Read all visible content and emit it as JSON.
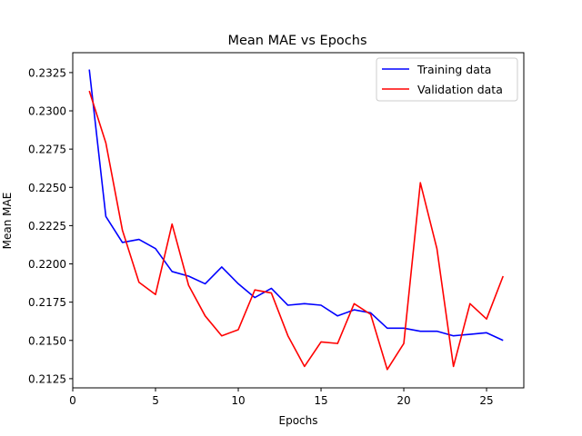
{
  "chart_data": {
    "type": "line",
    "title": "Mean MAE vs Epochs",
    "xlabel": "Epochs",
    "ylabel": "Mean MAE",
    "xlim": [
      0,
      27.25
    ],
    "ylim": [
      0.2119,
      0.2338
    ],
    "xticks": [
      0,
      5,
      10,
      15,
      20,
      25
    ],
    "yticks": [
      0.2125,
      0.215,
      0.2175,
      0.22,
      0.2225,
      0.225,
      0.2275,
      0.23,
      0.2325
    ],
    "grid": false,
    "legend_position": "top-right",
    "x": [
      1,
      2,
      3,
      4,
      5,
      6,
      7,
      8,
      9,
      10,
      11,
      12,
      13,
      14,
      15,
      16,
      17,
      18,
      19,
      20,
      21,
      22,
      23,
      24,
      25,
      26
    ],
    "series": [
      {
        "name": "Training data",
        "color": "#0000ff",
        "values": [
          0.2327,
          0.2231,
          0.2214,
          0.2216,
          0.221,
          0.2195,
          0.2192,
          0.2187,
          0.2198,
          0.2187,
          0.2178,
          0.2184,
          0.2173,
          0.2174,
          0.2173,
          0.2166,
          0.217,
          0.2168,
          0.2158,
          0.2158,
          0.2156,
          0.2156,
          0.2153,
          0.2154,
          0.2155,
          0.215
        ]
      },
      {
        "name": "Validation data",
        "color": "#ff0000",
        "values": [
          0.2313,
          0.2279,
          0.2222,
          0.2188,
          0.218,
          0.2226,
          0.2186,
          0.2166,
          0.2153,
          0.2157,
          0.2183,
          0.2181,
          0.2153,
          0.2133,
          0.2149,
          0.2148,
          0.2174,
          0.2167,
          0.2131,
          0.2148,
          0.2253,
          0.221,
          0.2133,
          0.2174,
          0.2164,
          0.2192
        ]
      }
    ]
  }
}
